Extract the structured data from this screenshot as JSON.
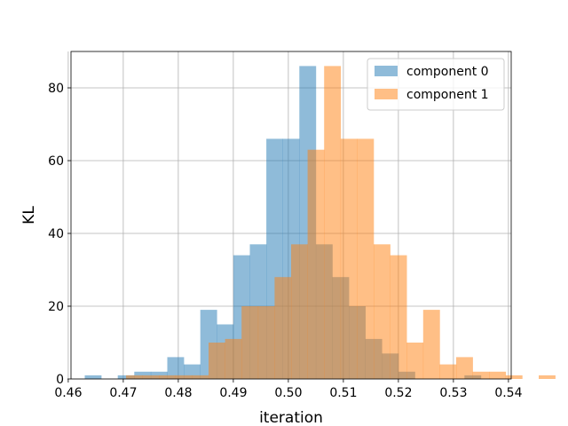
{
  "chart_data": {
    "type": "histogram",
    "title": "",
    "xlabel": "iteration",
    "ylabel": "KL",
    "xlim": [
      0.4605,
      0.5405
    ],
    "ylim": [
      0,
      90
    ],
    "xticks": [
      "0.46",
      "0.47",
      "0.48",
      "0.49",
      "0.50",
      "0.51",
      "0.52",
      "0.53",
      "0.54"
    ],
    "yticks": [
      "0",
      "20",
      "40",
      "60",
      "80"
    ],
    "grid": true,
    "legend_position": "top-right",
    "bin_width": 0.003,
    "series": [
      {
        "name": "component 0",
        "color": "#1f77b4",
        "alpha": 0.5,
        "bin_start": 0.463,
        "counts": [
          1,
          0,
          1,
          2,
          2,
          6,
          4,
          19,
          15,
          34,
          37,
          66,
          66,
          86,
          37,
          28,
          20,
          11,
          7,
          2,
          0,
          0,
          0,
          1
        ]
      },
      {
        "name": "component 1",
        "color": "#ff7f0e",
        "alpha": 0.5,
        "bin_start": 0.4705,
        "counts": [
          1,
          1,
          1,
          1,
          1,
          10,
          11,
          20,
          20,
          28,
          37,
          63,
          86,
          66,
          66,
          37,
          34,
          10,
          19,
          4,
          6,
          2,
          2,
          1,
          0,
          1
        ]
      }
    ]
  }
}
